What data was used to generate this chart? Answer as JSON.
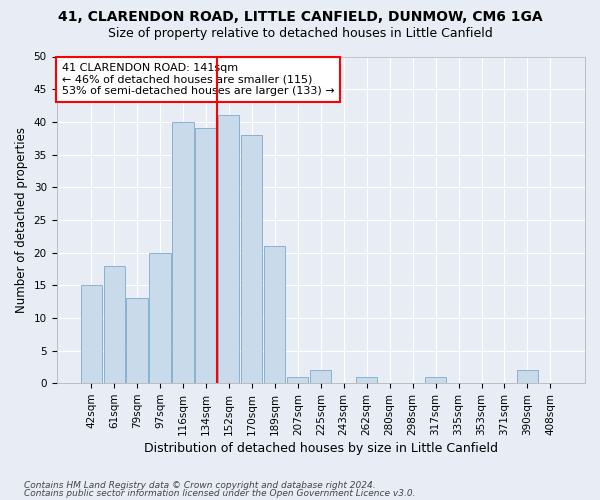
{
  "title1": "41, CLARENDON ROAD, LITTLE CANFIELD, DUNMOW, CM6 1GA",
  "title2": "Size of property relative to detached houses in Little Canfield",
  "xlabel": "Distribution of detached houses by size in Little Canfield",
  "ylabel": "Number of detached properties",
  "footnote1": "Contains HM Land Registry data © Crown copyright and database right 2024.",
  "footnote2": "Contains public sector information licensed under the Open Government Licence v3.0.",
  "bins": [
    "42sqm",
    "61sqm",
    "79sqm",
    "97sqm",
    "116sqm",
    "134sqm",
    "152sqm",
    "170sqm",
    "189sqm",
    "207sqm",
    "225sqm",
    "243sqm",
    "262sqm",
    "280sqm",
    "298sqm",
    "317sqm",
    "335sqm",
    "353sqm",
    "371sqm",
    "390sqm",
    "408sqm"
  ],
  "values": [
    15,
    18,
    13,
    20,
    40,
    39,
    41,
    38,
    21,
    1,
    2,
    0,
    1,
    0,
    0,
    1,
    0,
    0,
    0,
    2,
    0
  ],
  "bar_color": "#c9daea",
  "bar_edge_color": "#7aaac8",
  "vline_x_index": 6,
  "vline_color": "red",
  "annotation_box_text": "41 CLARENDON ROAD: 141sqm\n← 46% of detached houses are smaller (115)\n53% of semi-detached houses are larger (133) →",
  "ylim": [
    0,
    50
  ],
  "yticks": [
    0,
    5,
    10,
    15,
    20,
    25,
    30,
    35,
    40,
    45,
    50
  ],
  "bg_color": "#e8edf5",
  "plot_bg_color": "#e8edf5",
  "grid_color": "#ffffff",
  "title1_fontsize": 10,
  "title2_fontsize": 9,
  "xlabel_fontsize": 9,
  "ylabel_fontsize": 8.5,
  "tick_fontsize": 7.5,
  "annotation_fontsize": 8,
  "footnote_fontsize": 6.5
}
